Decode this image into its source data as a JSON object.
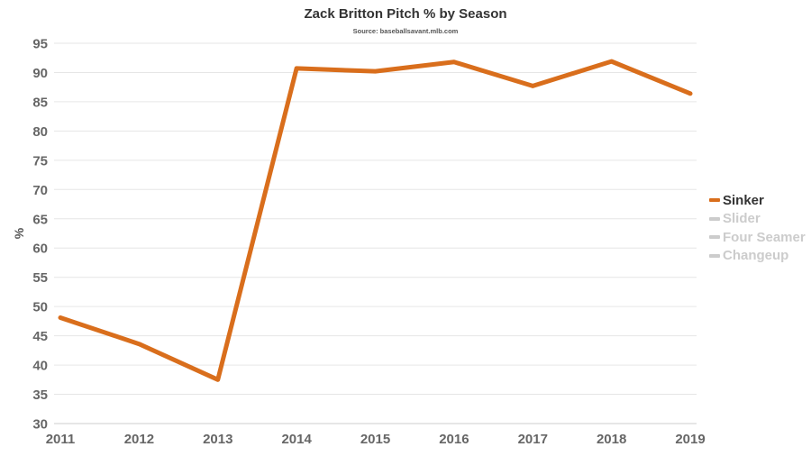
{
  "title": "Zack Britton Pitch % by Season",
  "subtitle": "Source: baseballsavant.mlb.com",
  "colors": {
    "active": "#d96e1c",
    "inactive": "#cccccc",
    "grid": "#e6e6e6",
    "axis": "#cccccc"
  },
  "chart_data": {
    "type": "line",
    "title": "Zack Britton Pitch % by Season",
    "subtitle": "Source: baseballsavant.mlb.com",
    "xlabel": "",
    "ylabel": "%",
    "x": [
      "2011",
      "2012",
      "2013",
      "2014",
      "2015",
      "2016",
      "2017",
      "2018",
      "2019"
    ],
    "ylim": [
      30,
      95
    ],
    "yticks": [
      30,
      35,
      40,
      45,
      50,
      55,
      60,
      65,
      70,
      75,
      80,
      85,
      90,
      95
    ],
    "grid": true,
    "legend_position": "right",
    "series": [
      {
        "name": "Sinker",
        "active": true,
        "values": [
          48.1,
          43.6,
          37.5,
          90.7,
          90.2,
          91.8,
          87.7,
          91.9,
          86.4
        ]
      }
    ],
    "legend": [
      {
        "name": "Sinker",
        "active": true
      },
      {
        "name": "Slider",
        "active": false
      },
      {
        "name": "Four Seamer",
        "active": false
      },
      {
        "name": "Changeup",
        "active": false
      }
    ]
  }
}
